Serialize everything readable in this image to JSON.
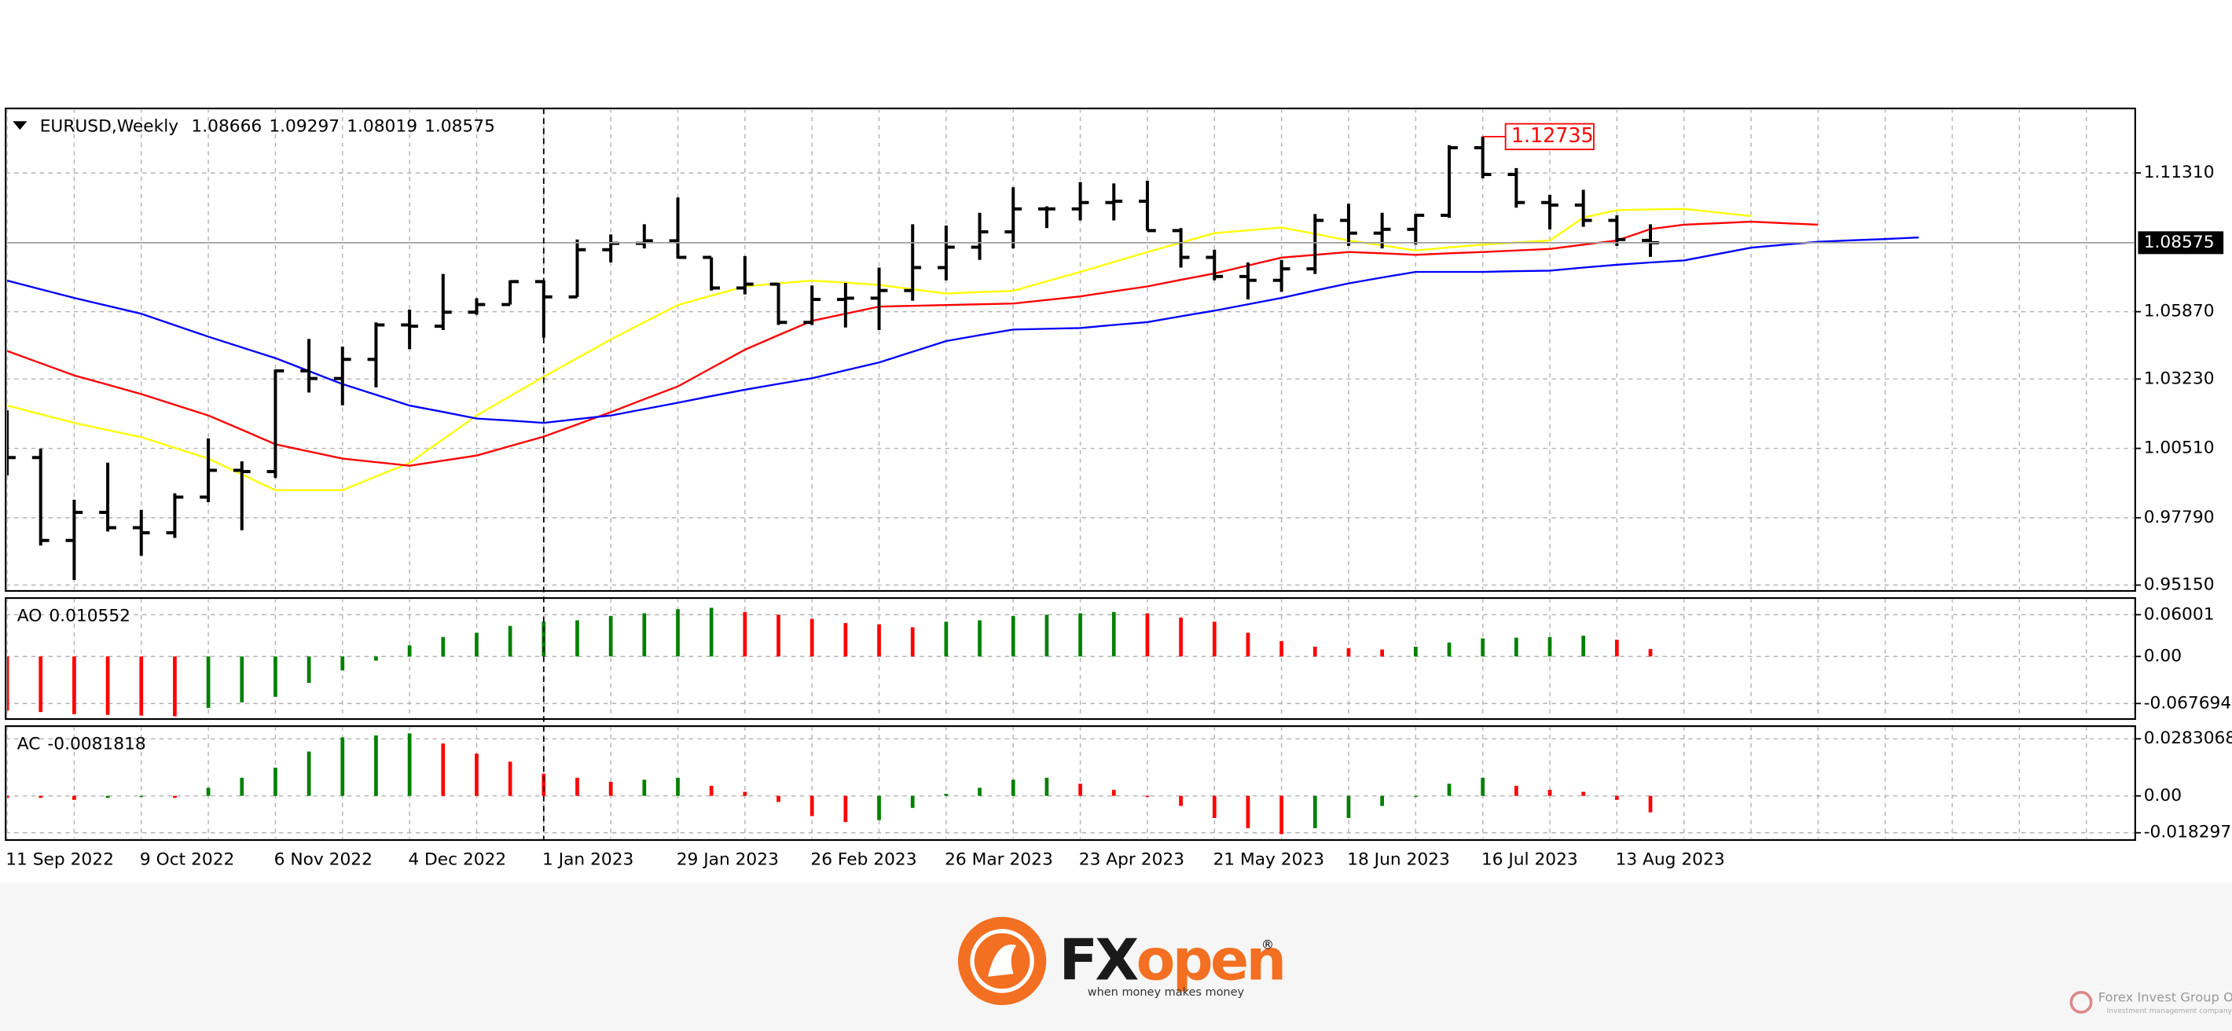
{
  "chart_data": [
    {
      "type": "ohlc",
      "title": "EURUSD,Weekly",
      "categories": [
        "11 Sep 2022",
        null,
        null,
        null,
        "9 Oct 2022",
        null,
        null,
        null,
        "6 Nov 2022",
        null,
        null,
        null,
        "4 Dec 2022",
        null,
        null,
        null,
        "1 Jan 2023",
        null,
        null,
        null,
        "29 Jan 2023",
        null,
        null,
        null,
        "26 Feb 2023",
        null,
        null,
        null,
        "26 Mar 2023",
        null,
        null,
        null,
        "23 Apr 2023",
        null,
        null,
        null,
        "21 May 2023",
        null,
        null,
        null,
        "18 Jun 2023",
        null,
        null,
        null,
        "16 Jul 2023",
        null,
        null,
        null,
        "13 Aug 2023",
        null,
        null,
        null,
        null,
        null,
        null,
        null,
        null,
        null,
        null,
        null,
        null,
        null,
        null,
        null
      ],
      "open": [
        1.004,
        1.0015,
        0.969,
        0.98,
        0.974,
        0.972,
        0.986,
        0.9965,
        0.996,
        1.0355,
        1.0325,
        1.04,
        1.0535,
        1.053,
        1.0585,
        1.0615,
        1.0705,
        1.0645,
        1.083,
        1.0855,
        1.0865,
        1.08,
        1.068,
        1.0695,
        1.0545,
        1.0635,
        1.064,
        1.067,
        1.076,
        1.084,
        1.09,
        1.099,
        1.099,
        1.1015,
        1.102,
        1.0905,
        1.08,
        1.0725,
        1.071,
        1.0755,
        1.0945,
        1.0895,
        1.091,
        1.0965,
        1.123,
        1.1125,
        1.1015,
        1.1005,
        1.0945,
        1.08666,
        null,
        null,
        null,
        null,
        null,
        null,
        null,
        null,
        null,
        null,
        null,
        null,
        null,
        null
      ],
      "high": [
        1.02,
        1.005,
        0.985,
        0.9995,
        0.981,
        0.9875,
        1.009,
        1.0,
        1.036,
        1.048,
        1.045,
        1.0545,
        1.0595,
        1.0735,
        1.064,
        1.071,
        1.071,
        1.087,
        1.089,
        1.093,
        1.1035,
        1.08,
        1.0805,
        1.07,
        1.069,
        1.07,
        1.076,
        1.093,
        1.0925,
        1.0975,
        1.1075,
        1.1,
        1.1095,
        1.109,
        1.11,
        1.0915,
        1.083,
        1.078,
        1.079,
        1.097,
        1.101,
        1.0975,
        1.097,
        1.124,
        1.12735,
        1.115,
        1.1045,
        1.1065,
        1.0965,
        1.09297,
        null,
        null,
        null,
        null,
        null,
        null,
        null,
        null,
        null,
        null,
        null,
        null,
        null,
        null
      ],
      "low": [
        0.9945,
        0.967,
        0.9535,
        0.9725,
        0.963,
        0.97,
        0.984,
        0.973,
        0.9935,
        1.027,
        1.022,
        1.029,
        1.044,
        1.0515,
        1.0575,
        1.0615,
        1.0485,
        1.0645,
        1.078,
        1.0835,
        1.0795,
        1.067,
        1.0655,
        1.0535,
        1.0535,
        1.0525,
        1.0515,
        1.063,
        1.071,
        1.079,
        1.0835,
        1.0915,
        1.0945,
        1.0945,
        1.0905,
        1.076,
        1.071,
        1.0635,
        1.0665,
        1.0735,
        1.0845,
        1.0835,
        1.085,
        1.0955,
        1.111,
        1.0995,
        1.091,
        1.092,
        1.0845,
        1.08019,
        null,
        null,
        null,
        null,
        null,
        null,
        null,
        null,
        null,
        null,
        null,
        null,
        null,
        null
      ],
      "close": [
        1.0015,
        0.969,
        0.98,
        0.974,
        0.972,
        0.986,
        0.9965,
        0.996,
        1.0355,
        1.0325,
        1.04,
        1.0535,
        1.053,
        1.0585,
        1.0615,
        1.0705,
        1.0645,
        1.083,
        1.0855,
        1.0865,
        1.08,
        1.068,
        1.0695,
        1.0545,
        1.0635,
        1.064,
        1.067,
        1.076,
        1.084,
        1.09,
        1.099,
        1.099,
        1.1015,
        1.102,
        1.0905,
        1.08,
        1.0725,
        1.071,
        1.0755,
        1.0945,
        1.0895,
        1.091,
        1.0965,
        1.123,
        1.1125,
        1.1015,
        1.1005,
        1.0945,
        1.087,
        1.08575,
        null,
        null,
        null,
        null,
        null,
        null,
        null,
        null,
        null,
        null,
        null,
        null,
        null,
        null
      ],
      "color": "#000000",
      "series": [
        {
          "color": "#ffff00",
          "values": [
            1.0219,
            1.0185,
            1.0151,
            1.0123,
            1.0095,
            1.0053,
            1.0011,
            0.9949,
            0.9887,
            0.9887,
            0.9887,
            0.9941,
            0.9994,
            1.0087,
            1.018,
            1.0256,
            1.0332,
            1.0405,
            1.0478,
            1.0546,
            1.0613,
            1.065,
            1.0686,
            1.0698,
            1.0709,
            1.0701,
            1.0692,
            1.0675,
            1.0658,
            1.0664,
            1.0669,
            1.0706,
            1.0743,
            1.0782,
            1.0821,
            1.0858,
            1.0895,
            1.0906,
            1.0917,
            1.0892,
            1.0866,
            1.0847,
            1.0827,
            1.0839,
            1.085,
            1.0858,
            1.0866,
            1.0956,
            1.0985,
            1.0988,
            1.099,
            1.0976,
            1.0962,
            null,
            null,
            null,
            null,
            null,
            null,
            null,
            null,
            null,
            null,
            null
          ]
        },
        {
          "color": "#ff0000",
          "values": [
            1.0433,
            1.0385,
            1.0337,
            1.0301,
            1.0264,
            1.0222,
            1.018,
            1.0124,
            1.0067,
            1.0039,
            1.0011,
            0.9997,
            0.9983,
            1.0003,
            1.0023,
            1.006,
            1.0097,
            1.0145,
            1.0193,
            1.0244,
            1.0294,
            1.0366,
            1.0438,
            1.0495,
            1.0551,
            1.0579,
            1.0607,
            1.061,
            1.0613,
            1.0616,
            1.0619,
            1.0633,
            1.0647,
            1.0667,
            1.0686,
            1.0712,
            1.0737,
            1.0768,
            1.0799,
            1.081,
            1.0821,
            1.0816,
            1.081,
            1.0816,
            1.0821,
            1.0827,
            1.0833,
            1.085,
            1.0866,
            1.0911,
            1.0928,
            1.0934,
            1.094,
            1.0934,
            1.0928,
            null,
            null,
            null,
            null,
            null,
            null,
            null,
            null,
            null
          ]
        },
        {
          "color": "#0000ff",
          "values": [
            1.0709,
            1.0675,
            1.0641,
            1.061,
            1.0579,
            1.0534,
            1.0489,
            1.0447,
            1.0405,
            1.0354,
            1.0303,
            1.0261,
            1.0219,
            1.0194,
            1.0168,
            1.016,
            1.0151,
            1.0166,
            1.018,
            1.0205,
            1.023,
            1.0256,
            1.0281,
            1.0304,
            1.0326,
            1.0357,
            1.0388,
            1.043,
            1.0472,
            1.0495,
            1.0517,
            1.052,
            1.0523,
            1.0535,
            1.0546,
            1.0569,
            1.0591,
            1.0616,
            1.0641,
            1.067,
            1.0698,
            1.0721,
            1.0743,
            1.0743,
            1.0743,
            1.0746,
            1.0748,
            1.076,
            1.0771,
            1.078,
            1.0788,
            1.0813,
            1.0838,
            1.085,
            1.0861,
            1.0867,
            1.0872,
            1.0878,
            null,
            null,
            null,
            null,
            null,
            null
          ]
        }
      ],
      "ylim": [
        0.9492,
        1.1384
      ],
      "yticks": [
        {
          "value": 1.1131,
          "label": "1.11310"
        },
        {
          "value": 1.0587,
          "label": "1.05870"
        },
        {
          "value": 1.0323,
          "label": "1.03230"
        },
        {
          "value": 1.0051,
          "label": "1.00510"
        },
        {
          "value": 0.9779,
          "label": "0.97790"
        },
        {
          "value": 0.9515,
          "label": "0.95150"
        }
      ],
      "grid": true,
      "price_line_color": "#a0a0a0",
      "high_label_color": "#ff0000"
    },
    {
      "type": "bar",
      "title": "AO",
      "values": [
        -0.078,
        -0.08,
        -0.083,
        -0.084,
        -0.085,
        -0.086,
        -0.074,
        -0.066,
        -0.058,
        -0.038,
        -0.02,
        -0.006,
        0.016,
        0.028,
        0.034,
        0.044,
        0.05,
        0.052,
        0.058,
        0.062,
        0.068,
        0.07,
        0.064,
        0.06,
        0.054,
        0.048,
        0.046,
        0.042,
        0.05,
        0.052,
        0.058,
        0.06,
        0.062,
        0.064,
        0.062,
        0.056,
        0.05,
        0.034,
        0.022,
        0.014,
        0.012,
        0.01,
        0.014,
        0.02,
        0.026,
        0.027,
        0.028,
        0.03,
        0.024,
        0.010552,
        null,
        null,
        null,
        null,
        null,
        null,
        null,
        null,
        null,
        null,
        null,
        null,
        null,
        null
      ],
      "up_color": "#008000",
      "down_color": "#ff0000",
      "ylim": [
        -0.09,
        0.084
      ],
      "yticks": [
        0.06001,
        {
          "value": 0,
          "label": "0.00"
        },
        -0.067694
      ],
      "grid": true
    },
    {
      "type": "bar",
      "title": "AC",
      "values": [
        -0.001,
        -0.001,
        -0.002,
        -0.001,
        -0.0005,
        -0.001,
        0.004,
        0.009,
        0.014,
        0.022,
        0.029,
        0.03,
        0.031,
        0.026,
        0.021,
        0.017,
        0.011,
        0.009,
        0.007,
        0.008,
        0.009,
        0.005,
        0.002,
        -0.003,
        -0.01,
        -0.013,
        -0.012,
        -0.006,
        0.001,
        0.004,
        0.008,
        0.009,
        0.006,
        0.003,
        -0.0005,
        -0.005,
        -0.011,
        -0.016,
        -0.019,
        -0.016,
        -0.011,
        -0.005,
        -0.0005,
        0.006,
        0.009,
        0.005,
        0.003,
        0.002,
        -0.002,
        -0.0081818,
        null,
        null,
        null,
        null,
        null,
        null,
        null,
        null,
        null,
        null,
        null,
        null,
        null,
        null
      ],
      "up_color": "#008000",
      "down_color": "#ff0000",
      "ylim": [
        -0.0219,
        0.0346
      ],
      "yticks": [
        0.0283068,
        {
          "value": 0,
          "label": "0.00"
        },
        -0.018297
      ],
      "grid": true
    }
  ],
  "branding": {
    "fx": "FX",
    "open": "open",
    "registered": "®",
    "tagline": "when money makes money",
    "watermark": "Forex Invest Group OU",
    "watermark_sub": "Investment management company"
  }
}
